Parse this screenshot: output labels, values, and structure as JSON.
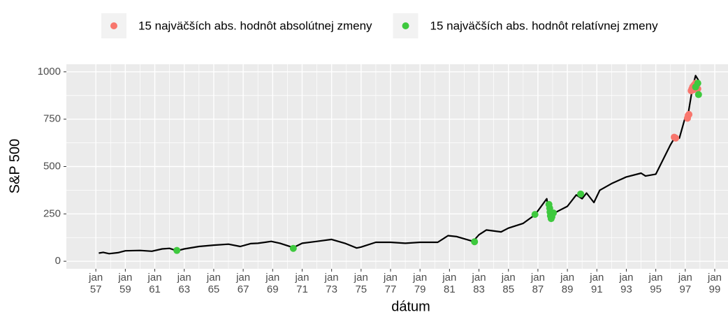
{
  "chart_data": {
    "type": "line",
    "x_label": "dátum",
    "y_label": "S&P 500",
    "xlim": [
      1955.0,
      1999.9
    ],
    "ylim": [
      -40,
      1040
    ],
    "xticks": [
      {
        "value": 1957,
        "label": "jan\n57"
      },
      {
        "value": 1959,
        "label": "jan\n59"
      },
      {
        "value": 1961,
        "label": "jan\n61"
      },
      {
        "value": 1963,
        "label": "jan\n63"
      },
      {
        "value": 1965,
        "label": "jan\n65"
      },
      {
        "value": 1967,
        "label": "jan\n67"
      },
      {
        "value": 1969,
        "label": "jan\n69"
      },
      {
        "value": 1971,
        "label": "jan\n71"
      },
      {
        "value": 1973,
        "label": "jan\n73"
      },
      {
        "value": 1975,
        "label": "jan\n75"
      },
      {
        "value": 1977,
        "label": "jan\n77"
      },
      {
        "value": 1979,
        "label": "jan\n79"
      },
      {
        "value": 1981,
        "label": "jan\n81"
      },
      {
        "value": 1983,
        "label": "jan\n83"
      },
      {
        "value": 1985,
        "label": "jan\n85"
      },
      {
        "value": 1987,
        "label": "jan\n87"
      },
      {
        "value": 1989,
        "label": "jan\n89"
      },
      {
        "value": 1991,
        "label": "jan\n91"
      },
      {
        "value": 1993,
        "label": "jan\n93"
      },
      {
        "value": 1995,
        "label": "jan\n95"
      },
      {
        "value": 1997,
        "label": "jan\n97"
      },
      {
        "value": 1999,
        "label": "jan\n99"
      }
    ],
    "yticks": [
      0,
      250,
      500,
      750,
      1000
    ],
    "grid": true,
    "legend": "top",
    "series": [
      {
        "type": "line",
        "color": "#000000",
        "x": [
          1957.2,
          1957.5,
          1957.9,
          1958.5,
          1959,
          1960,
          1960.8,
          1961.5,
          1962,
          1962.5,
          1963,
          1964,
          1965,
          1966,
          1966.8,
          1967.5,
          1968,
          1968.9,
          1969.5,
          1970.4,
          1971,
          1972,
          1973,
          1973.9,
          1974.7,
          1975,
          1976,
          1977,
          1978,
          1979,
          1980.2,
          1980.9,
          1981.5,
          1982.6,
          1983,
          1983.5,
          1984.5,
          1985,
          1986,
          1986.8,
          1987.6,
          1987.8,
          1988,
          1989,
          1989.6,
          1990,
          1990.3,
          1990.8,
          1991.2,
          1992,
          1993,
          1994,
          1994.3,
          1995,
          1996,
          1996.3,
          1996.6,
          1997,
          1997.2,
          1997.5,
          1997.7,
          1997.9
        ],
        "values": [
          43,
          47,
          40,
          45,
          55,
          57,
          53,
          65,
          68,
          55,
          65,
          78,
          85,
          90,
          78,
          93,
          95,
          105,
          95,
          72,
          95,
          105,
          115,
          95,
          70,
          75,
          100,
          100,
          95,
          100,
          100,
          135,
          130,
          105,
          140,
          165,
          155,
          175,
          200,
          245,
          330,
          230,
          250,
          290,
          350,
          330,
          360,
          310,
          375,
          410,
          445,
          465,
          450,
          460,
          615,
          655,
          650,
          760,
          780,
          920,
          980,
          955
        ]
      },
      {
        "type": "scatter",
        "name": "15 najväčších abs. hodnôt absolútnej zmeny",
        "color": "#f8766d",
        "x": [
          1996.25,
          1996.35,
          1997.15,
          1997.2,
          1997.25,
          1997.4,
          1997.45,
          1997.5,
          1997.55,
          1997.6,
          1997.65,
          1997.7,
          1997.75,
          1997.8,
          1997.85
        ],
        "values": [
          655,
          650,
          755,
          770,
          775,
          900,
          910,
          920,
          905,
          930,
          915,
          940,
          925,
          935,
          910
        ]
      },
      {
        "type": "scatter",
        "name": "15 najväčších abs. hodnôt relatívnej zmeny",
        "color": "#3ec93e",
        "x": [
          1962.5,
          1970.4,
          1982.7,
          1986.8,
          1987.75,
          1987.8,
          1987.82,
          1987.85,
          1987.9,
          1987.95,
          1988.05,
          1989.9,
          1997.7,
          1997.85,
          1997.9
        ],
        "values": [
          57,
          68,
          103,
          247,
          300,
          280,
          260,
          240,
          225,
          235,
          255,
          355,
          920,
          940,
          880
        ]
      }
    ]
  }
}
